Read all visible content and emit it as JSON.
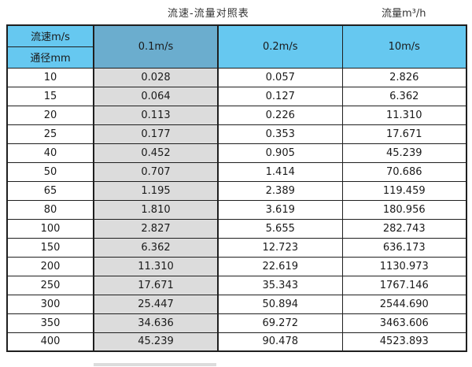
{
  "page": {
    "title": "流速-流量对照表",
    "unit_label": "流量m³/h"
  },
  "table": {
    "corner": {
      "top": "流速m/s",
      "bottom": "通径mm"
    },
    "velocity_headers": [
      "0.1m/s",
      "0.2m/s",
      "10m/s"
    ],
    "rows": [
      {
        "dn": "10",
        "values": [
          "0.028",
          "0.057",
          "2.826"
        ]
      },
      {
        "dn": "15",
        "values": [
          "0.064",
          "0.127",
          "6.362"
        ]
      },
      {
        "dn": "20",
        "values": [
          "0.113",
          "0.226",
          "11.310"
        ]
      },
      {
        "dn": "25",
        "values": [
          "0.177",
          "0.353",
          "17.671"
        ]
      },
      {
        "dn": "40",
        "values": [
          "0.452",
          "0.905",
          "45.239"
        ]
      },
      {
        "dn": "50",
        "values": [
          "0.707",
          "1.414",
          "70.686"
        ]
      },
      {
        "dn": "65",
        "values": [
          "1.195",
          "2.389",
          "119.459"
        ]
      },
      {
        "dn": "80",
        "values": [
          "1.810",
          "3.619",
          "180.956"
        ]
      },
      {
        "dn": "100",
        "values": [
          "2.827",
          "5.655",
          "282.743"
        ]
      },
      {
        "dn": "150",
        "values": [
          "6.362",
          "12.723",
          "636.173"
        ]
      },
      {
        "dn": "200",
        "values": [
          "11.310",
          "22.619",
          "1130.973"
        ]
      },
      {
        "dn": "250",
        "values": [
          "17.671",
          "35.343",
          "1767.146"
        ]
      },
      {
        "dn": "300",
        "values": [
          "25.447",
          "50.894",
          "2544.690"
        ]
      },
      {
        "dn": "350",
        "values": [
          "34.636",
          "69.272",
          "3463.606"
        ]
      },
      {
        "dn": "400",
        "values": [
          "45.239",
          "90.478",
          "4523.893"
        ]
      }
    ]
  },
  "colors": {
    "header_blue": "#66c8f0",
    "header_blue_dark": "#6badce",
    "highlight_column_gray": "#dcdcdc",
    "border": "#1f1f1f"
  }
}
